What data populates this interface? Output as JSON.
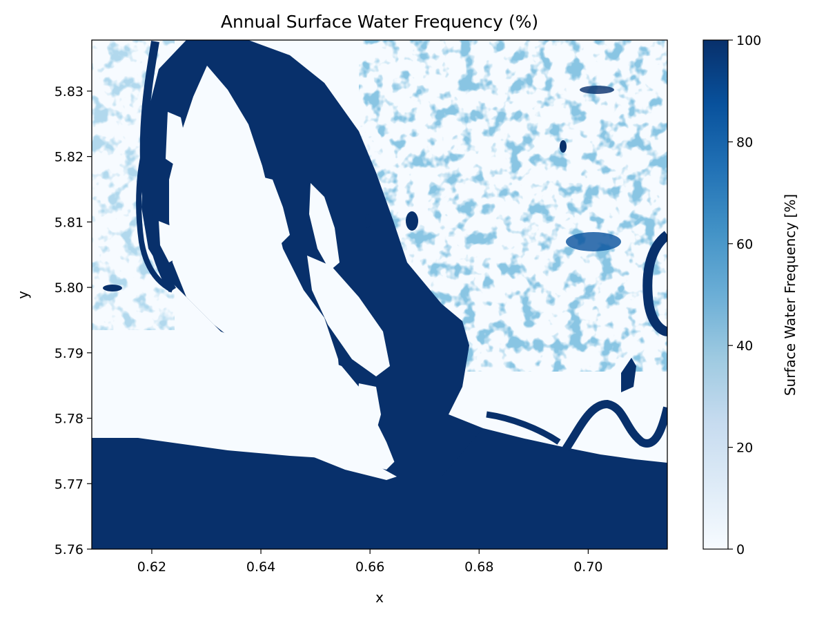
{
  "chart_data": {
    "type": "heatmap",
    "title": "Annual Surface Water Frequency (%)",
    "xlabel": "x",
    "ylabel": "y",
    "xlim": [
      0.609,
      0.7145
    ],
    "ylim": [
      5.76,
      5.8378
    ],
    "xticks": [
      0.62,
      0.64,
      0.66,
      0.68,
      0.7
    ],
    "xtick_labels": [
      "0.62",
      "0.64",
      "0.66",
      "0.68",
      "0.70"
    ],
    "yticks": [
      5.76,
      5.77,
      5.78,
      5.79,
      5.8,
      5.81,
      5.82,
      5.83
    ],
    "ytick_labels": [
      "5.76",
      "5.77",
      "5.78",
      "5.79",
      "5.80",
      "5.81",
      "5.82",
      "5.83"
    ],
    "colormap": "Blues",
    "colormap_low": "#f7fbff",
    "colormap_high": "#08306b",
    "colorbar": {
      "label": "Surface Water Frequency [%]",
      "range": [
        0,
        100
      ],
      "ticks": [
        0,
        20,
        40,
        60,
        80,
        100
      ],
      "tick_labels": [
        "0",
        "20",
        "40",
        "60",
        "80",
        "100"
      ]
    }
  }
}
